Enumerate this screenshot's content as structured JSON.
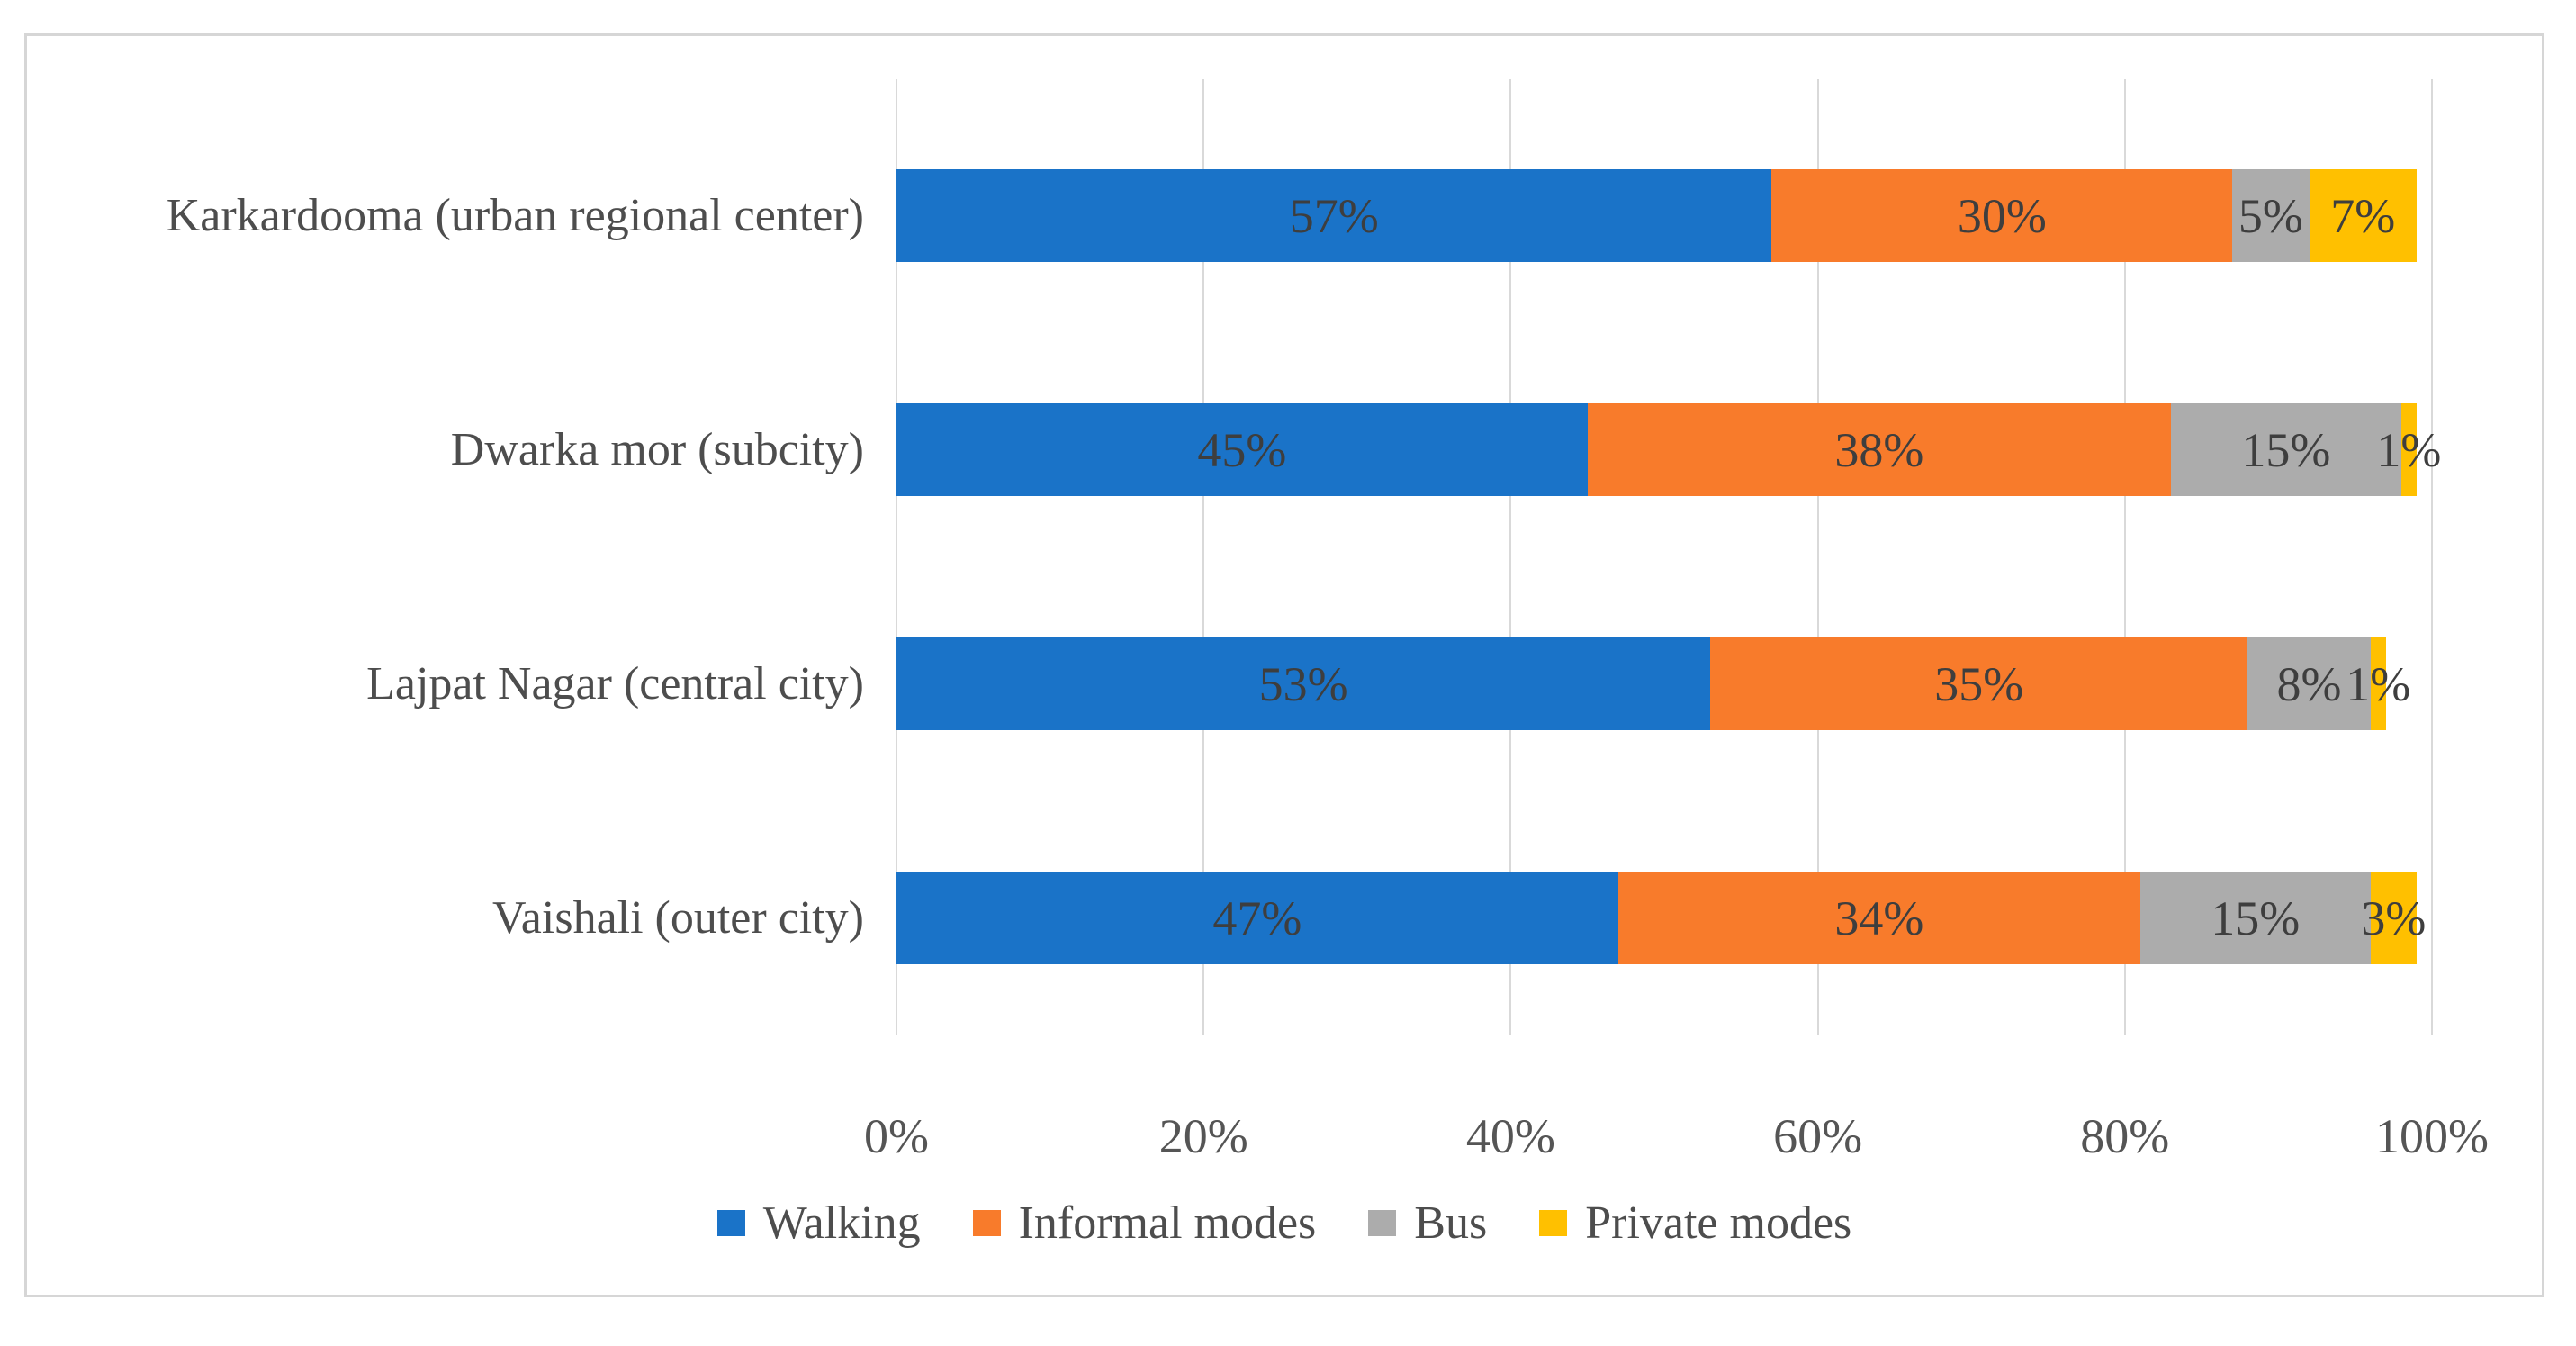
{
  "chart_data": {
    "type": "bar",
    "orientation": "horizontal",
    "stacked": true,
    "title": "",
    "xlabel": "",
    "ylabel": "",
    "xlim": [
      0,
      100
    ],
    "x_ticks": [
      "0%",
      "20%",
      "40%",
      "60%",
      "80%",
      "100%"
    ],
    "x_tick_values": [
      0,
      20,
      40,
      60,
      80,
      100
    ],
    "grid": "vertical",
    "legend_position": "bottom",
    "categories": [
      "Karkardooma (urban regional center)",
      "Dwarka mor (subcity)",
      "Lajpat Nagar (central city)",
      "Vaishali (outer city)"
    ],
    "series": [
      {
        "name": "Walking",
        "color": "#1a73c8",
        "values": [
          57,
          45,
          53,
          47
        ],
        "labels": [
          "57%",
          "45%",
          "53%",
          "47%"
        ]
      },
      {
        "name": "Informal modes",
        "color": "#f87b2b",
        "values": [
          30,
          38,
          35,
          34
        ],
        "labels": [
          "30%",
          "38%",
          "35%",
          "34%"
        ]
      },
      {
        "name": "Bus",
        "color": "#acacac",
        "values": [
          5,
          15,
          8,
          15
        ],
        "labels": [
          "5%",
          "15%",
          "8%",
          "15%"
        ]
      },
      {
        "name": "Private modes",
        "color": "#ffc000",
        "values": [
          7,
          1,
          1,
          3
        ],
        "labels": [
          "7%",
          "1%",
          "1%",
          "3%"
        ]
      }
    ],
    "style": {
      "gridline_color": "#d9d9d9",
      "panel_border_color": "#d6d6d6",
      "label_text_color": "#3e3e3e",
      "axis_text_color": "#555555",
      "category_text_color": "#4d4d4d",
      "background_color": "#ffffff"
    }
  }
}
